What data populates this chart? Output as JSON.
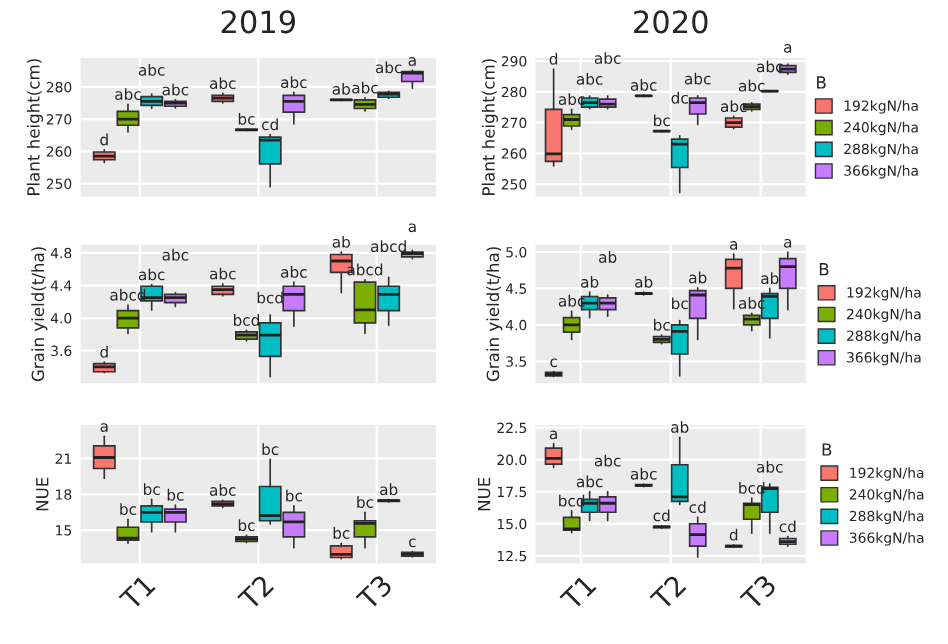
{
  "chart_data": [
    {
      "type": "box",
      "title": "2019",
      "ylabel": "Plant height(cm)",
      "categories": [
        null,
        null,
        null
      ],
      "ylim": [
        246,
        289
      ],
      "yticks": [
        250,
        260,
        270,
        280
      ],
      "grid": true,
      "tick_labels": "y",
      "series": [
        {
          "color": "#f8766d",
          "value_labels": [
            "d",
            "abc",
            "ab"
          ],
          "boxes": [
            {
              "low": 256.5,
              "q1": 257.4,
              "median": 258.5,
              "q3": 259.8,
              "high": 260.5
            },
            {
              "low": 275.0,
              "q1": 275.5,
              "median": 276.5,
              "q3": 277.4,
              "high": 278.0
            },
            {
              "low": 275.8,
              "q1": 275.9,
              "median": 276.0,
              "q3": 276.1,
              "high": 276.2
            }
          ]
        },
        {
          "color": "#7cae00",
          "value_labels": [
            "abc",
            "bc",
            "abc"
          ],
          "boxes": [
            {
              "low": 266.0,
              "q1": 268.1,
              "median": 270.0,
              "q3": 272.4,
              "high": 274.6
            },
            {
              "low": 266.5,
              "q1": 266.6,
              "median": 266.7,
              "q3": 266.8,
              "high": 266.9
            },
            {
              "low": 272.5,
              "q1": 273.3,
              "median": 274.6,
              "q3": 276.0,
              "high": 276.6
            }
          ]
        },
        {
          "color": "#00bfc4",
          "value_labels": [
            "abc",
            "cd",
            "abc"
          ],
          "boxes": [
            {
              "low": 273.3,
              "q1": 274.3,
              "median": 275.5,
              "q3": 277.0,
              "high": 277.8
            },
            {
              "low": 249.0,
              "q1": 256.1,
              "median": 263.5,
              "q3": 264.4,
              "high": 265.2
            },
            {
              "low": 276.4,
              "q1": 276.8,
              "median": 277.8,
              "q3": 278.3,
              "high": 278.6
            }
          ]
        },
        {
          "color": "#c77cff",
          "value_labels": [
            "abc",
            "abc",
            "a"
          ],
          "boxes": [
            {
              "low": 273.5,
              "q1": 274.0,
              "median": 275.0,
              "q3": 275.5,
              "high": 276.0
            },
            {
              "low": 268.5,
              "q1": 272.2,
              "median": 275.5,
              "q3": 277.4,
              "high": 278.3
            },
            {
              "low": 279.6,
              "q1": 281.7,
              "median": 284.3,
              "q3": 284.8,
              "high": 285.2
            }
          ]
        }
      ]
    },
    {
      "type": "box",
      "title": "2020",
      "ylabel": "Plant height(cm)",
      "legend_title": "B",
      "categories": [
        null,
        null,
        null
      ],
      "ylim": [
        246,
        291
      ],
      "yticks": [
        250,
        260,
        270,
        280,
        290
      ],
      "grid": true,
      "legend": "right",
      "tick_labels": "y",
      "series": [
        {
          "name": "192kgN/ha",
          "color": "#f8766d",
          "value_labels": [
            "d",
            "abc",
            "abc"
          ],
          "boxes": [
            {
              "low": 255.9,
              "q1": 257.4,
              "median": 259.8,
              "q3": 274.3,
              "high": 287.4
            },
            {
              "low": 278.5,
              "q1": 278.6,
              "median": 278.7,
              "q3": 278.8,
              "high": 278.9
            },
            {
              "low": 268.0,
              "q1": 268.5,
              "median": 270.0,
              "q3": 271.5,
              "high": 272.0
            }
          ]
        },
        {
          "name": "240kgN/ha",
          "color": "#7cae00",
          "value_labels": [
            "abc",
            "bc",
            "abc"
          ],
          "boxes": [
            {
              "low": 267.8,
              "q1": 268.9,
              "median": 271.0,
              "q3": 272.6,
              "high": 274.3
            },
            {
              "low": 267.0,
              "q1": 267.1,
              "median": 267.2,
              "q3": 267.3,
              "high": 267.4
            },
            {
              "low": 273.8,
              "q1": 274.3,
              "median": 275.2,
              "q3": 276.0,
              "high": 276.4
            }
          ]
        },
        {
          "name": "288kgN/ha",
          "color": "#00bfc4",
          "value_labels": [
            "abc",
            "dc",
            "abc"
          ],
          "boxes": [
            {
              "low": 274.5,
              "q1": 275.0,
              "median": 276.5,
              "q3": 278.0,
              "high": 278.6
            },
            {
              "low": 247.2,
              "q1": 255.4,
              "median": 263.0,
              "q3": 264.6,
              "high": 265.7
            },
            {
              "low": 280.0,
              "q1": 280.1,
              "median": 280.2,
              "q3": 280.3,
              "high": 280.4
            }
          ]
        },
        {
          "name": "366kgN/ha",
          "color": "#c77cff",
          "value_labels": [
            "abc",
            "abc",
            "a"
          ],
          "boxes": [
            {
              "low": 274.5,
              "q1": 275.0,
              "median": 276.0,
              "q3": 277.6,
              "high": 278.6
            },
            {
              "low": 269.4,
              "q1": 272.8,
              "median": 276.5,
              "q3": 278.0,
              "high": 278.7
            },
            {
              "low": 285.7,
              "q1": 286.3,
              "median": 287.4,
              "q3": 288.5,
              "high": 289.0
            }
          ]
        }
      ]
    },
    {
      "type": "box",
      "ylabel": "Grain yield(t/ha)",
      "categories": [
        null,
        null,
        null
      ],
      "ylim": [
        3.2,
        4.9
      ],
      "yticks": [
        3.6,
        {
          "value": 4,
          "label": "4.0"
        },
        4.4,
        4.8
      ],
      "grid": true,
      "tick_labels": "y",
      "series": [
        {
          "color": "#f8766d",
          "value_labels": [
            "d",
            "abc",
            "ab"
          ],
          "boxes": [
            {
              "low": 3.33,
              "q1": 3.34,
              "median": 3.4,
              "q3": 3.44,
              "high": 3.46
            },
            {
              "low": 4.27,
              "q1": 4.29,
              "median": 4.35,
              "q3": 4.39,
              "high": 4.42
            },
            {
              "low": 4.31,
              "q1": 4.56,
              "median": 4.7,
              "q3": 4.78,
              "high": 4.81
            }
          ]
        },
        {
          "color": "#7cae00",
          "value_labels": [
            "abcd",
            "bcd",
            "abcd"
          ],
          "boxes": [
            {
              "low": 3.81,
              "q1": 3.88,
              "median": 4.0,
              "q3": 4.09,
              "high": 4.16
            },
            {
              "low": 3.72,
              "q1": 3.74,
              "median": 3.79,
              "q3": 3.83,
              "high": 3.85
            },
            {
              "low": 3.81,
              "q1": 3.94,
              "median": 4.1,
              "q3": 4.44,
              "high": 4.47
            }
          ]
        },
        {
          "color": "#00bfc4",
          "value_labels": [
            "abc",
            "bcd",
            "abcd"
          ],
          "boxes": [
            {
              "low": 4.1,
              "q1": 4.21,
              "median": 4.25,
              "q3": 4.39,
              "high": 4.41
            },
            {
              "low": 3.28,
              "q1": 3.53,
              "median": 3.79,
              "q3": 3.94,
              "high": 4.04
            },
            {
              "low": 3.91,
              "q1": 4.09,
              "median": 4.29,
              "q3": 4.39,
              "high": 4.5
            }
          ]
        },
        {
          "color": "#c77cff",
          "value_labels": [
            "abc",
            "abc",
            "a"
          ],
          "boxes": [
            {
              "low": 4.14,
              "q1": 4.19,
              "median": 4.25,
              "q3": 4.29,
              "high": 4.31
            },
            {
              "low": 3.9,
              "q1": 4.09,
              "median": 4.29,
              "q3": 4.39,
              "high": 4.44
            },
            {
              "low": 4.73,
              "q1": 4.75,
              "median": 4.79,
              "q3": 4.81,
              "high": 4.83
            }
          ]
        }
      ]
    },
    {
      "type": "box",
      "ylabel": "Grain yield(t/ha)",
      "legend_title": "B",
      "categories": [
        null,
        null,
        null
      ],
      "ylim": [
        3.2,
        5.1
      ],
      "yticks": [
        3.5,
        {
          "value": 4,
          "label": "4.0"
        },
        4.5,
        {
          "value": 5,
          "label": "5.0"
        }
      ],
      "grid": true,
      "legend": "right",
      "tick_labels": "y",
      "series": [
        {
          "name": "192kgN/ha",
          "color": "#f8766d",
          "value_labels": [
            "c",
            "ab",
            "a"
          ],
          "boxes": [
            {
              "low": 3.29,
              "q1": 3.3,
              "median": 3.32,
              "q3": 3.35,
              "high": 3.36
            },
            {
              "low": 4.41,
              "q1": 4.42,
              "median": 4.43,
              "q3": 4.44,
              "high": 4.45
            },
            {
              "low": 4.22,
              "q1": 4.5,
              "median": 4.78,
              "q3": 4.9,
              "high": 4.97
            }
          ]
        },
        {
          "name": "240kgN/ha",
          "color": "#7cae00",
          "value_labels": [
            "abc",
            "bc",
            "abc"
          ],
          "boxes": [
            {
              "low": 3.8,
              "q1": 3.9,
              "median": 4.0,
              "q3": 4.1,
              "high": 4.19
            },
            {
              "low": 3.74,
              "q1": 3.76,
              "median": 3.8,
              "q3": 3.84,
              "high": 3.86
            },
            {
              "low": 3.92,
              "q1": 4.0,
              "median": 4.08,
              "q3": 4.13,
              "high": 4.16
            }
          ]
        },
        {
          "name": "288kgN/ha",
          "color": "#00bfc4",
          "value_labels": [
            "ab",
            "bc",
            "ab"
          ],
          "boxes": [
            {
              "low": 4.1,
              "q1": 4.21,
              "median": 4.3,
              "q3": 4.39,
              "high": 4.45
            },
            {
              "low": 3.3,
              "q1": 3.6,
              "median": 3.91,
              "q3": 4.0,
              "high": 4.06
            },
            {
              "low": 3.82,
              "q1": 4.09,
              "median": 4.39,
              "q3": 4.43,
              "high": 4.5
            }
          ]
        },
        {
          "name": "366kgN/ha",
          "color": "#c77cff",
          "value_labels": [
            "ab",
            "ab",
            "a"
          ],
          "boxes": [
            {
              "low": 4.12,
              "q1": 4.21,
              "median": 4.3,
              "q3": 4.37,
              "high": 4.41
            },
            {
              "low": 3.8,
              "q1": 4.09,
              "median": 4.41,
              "q3": 4.47,
              "high": 4.51
            },
            {
              "low": 4.21,
              "q1": 4.5,
              "median": 4.8,
              "q3": 4.91,
              "high": 5.0
            }
          ]
        }
      ]
    },
    {
      "type": "box",
      "ylabel": "NUE",
      "categories": [
        "T1",
        "T2",
        "T3"
      ],
      "ylim": [
        12.2,
        23.8
      ],
      "yticks": [
        15,
        18,
        21
      ],
      "grid": true,
      "series": [
        {
          "color": "#f8766d",
          "value_labels": [
            "a",
            "abc",
            "bc"
          ],
          "boxes": [
            {
              "low": 19.35,
              "q1": 20.16,
              "median": 21.08,
              "q3": 22.05,
              "high": 22.86
            },
            {
              "low": 16.9,
              "q1": 17.03,
              "median": 17.19,
              "q3": 17.41,
              "high": 17.5
            },
            {
              "low": 12.6,
              "q1": 12.7,
              "median": 12.97,
              "q3": 13.68,
              "high": 13.9
            }
          ]
        },
        {
          "color": "#7cae00",
          "value_labels": [
            "bc",
            "bc",
            "bc"
          ],
          "boxes": [
            {
              "low": 13.9,
              "q1": 14.16,
              "median": 14.32,
              "q3": 15.24,
              "high": 15.9
            },
            {
              "low": 13.95,
              "q1": 14.05,
              "median": 14.27,
              "q3": 14.43,
              "high": 14.55
            },
            {
              "low": 13.51,
              "q1": 14.43,
              "median": 15.57,
              "q3": 15.78,
              "high": 16.49
            }
          ]
        },
        {
          "color": "#00bfc4",
          "value_labels": [
            "bc",
            "bc",
            "ab"
          ],
          "boxes": [
            {
              "low": 14.86,
              "q1": 15.68,
              "median": 16.49,
              "q3": 17.03,
              "high": 17.57
            },
            {
              "low": 15.51,
              "q1": 15.78,
              "median": 16.22,
              "q3": 18.65,
              "high": 20.92
            },
            {
              "low": 17.36,
              "q1": 17.41,
              "median": 17.46,
              "q3": 17.51,
              "high": 17.56
            }
          ]
        },
        {
          "color": "#c77cff",
          "value_labels": [
            "bc",
            "bc",
            "c"
          ],
          "boxes": [
            {
              "low": 14.86,
              "q1": 15.68,
              "median": 16.49,
              "q3": 16.76,
              "high": 17.1
            },
            {
              "low": 13.51,
              "q1": 14.43,
              "median": 15.68,
              "q3": 16.49,
              "high": 17.03
            },
            {
              "low": 12.75,
              "q1": 12.81,
              "median": 12.97,
              "q3": 13.14,
              "high": 13.2
            }
          ]
        }
      ]
    },
    {
      "type": "box",
      "ylabel": "NUE",
      "legend_title": "B",
      "categories": [
        "T1",
        "T2",
        "T3"
      ],
      "ylim": [
        11.9,
        22.7
      ],
      "yticks": [
        12.5,
        {
          "value": 15,
          "label": "15.0"
        },
        17.5,
        {
          "value": 20,
          "label": "20.0"
        },
        22.5
      ],
      "grid": true,
      "legend": "right",
      "series": [
        {
          "name": "192kgN/ha",
          "color": "#f8766d",
          "value_labels": [
            "a",
            "abc",
            "d"
          ],
          "boxes": [
            {
              "low": 19.4,
              "q1": 19.65,
              "median": 20.1,
              "q3": 20.9,
              "high": 21.25
            },
            {
              "low": 17.9,
              "q1": 17.95,
              "median": 18.0,
              "q3": 18.05,
              "high": 18.1
            },
            {
              "low": 13.15,
              "q1": 13.2,
              "median": 13.25,
              "q3": 13.3,
              "high": 13.35
            }
          ]
        },
        {
          "name": "240kgN/ha",
          "color": "#7cae00",
          "value_labels": [
            "bcd",
            "cd",
            "bcd"
          ],
          "boxes": [
            {
              "low": 14.3,
              "q1": 14.5,
              "median": 14.6,
              "q3": 15.5,
              "high": 16.0
            },
            {
              "low": 14.65,
              "q1": 14.7,
              "median": 14.75,
              "q3": 14.8,
              "high": 14.85
            },
            {
              "low": 14.25,
              "q1": 15.35,
              "median": 16.5,
              "q3": 16.6,
              "high": 17.0
            }
          ]
        },
        {
          "name": "288kgN/ha",
          "color": "#00bfc4",
          "value_labels": [
            "abc",
            "ab",
            "abc"
          ],
          "boxes": [
            {
              "low": 15.25,
              "q1": 15.9,
              "median": 16.6,
              "q3": 16.9,
              "high": 17.5
            },
            {
              "low": 16.5,
              "q1": 16.75,
              "median": 17.1,
              "q3": 19.6,
              "high": 21.75
            },
            {
              "low": 14.25,
              "q1": 15.9,
              "median": 17.75,
              "q3": 17.85,
              "high": 18.1
            }
          ]
        },
        {
          "name": "366kgN/ha",
          "color": "#c77cff",
          "value_labels": [
            "abc",
            "cd",
            "cd"
          ],
          "boxes": [
            {
              "low": 15.25,
              "q1": 15.9,
              "median": 16.6,
              "q3": 17.1,
              "high": 17.5
            },
            {
              "low": 12.4,
              "q1": 13.25,
              "median": 14.15,
              "q3": 15.0,
              "high": 15.5
            },
            {
              "low": 13.25,
              "q1": 13.4,
              "median": 13.6,
              "q3": 13.85,
              "high": 14.0
            }
          ]
        }
      ]
    }
  ]
}
